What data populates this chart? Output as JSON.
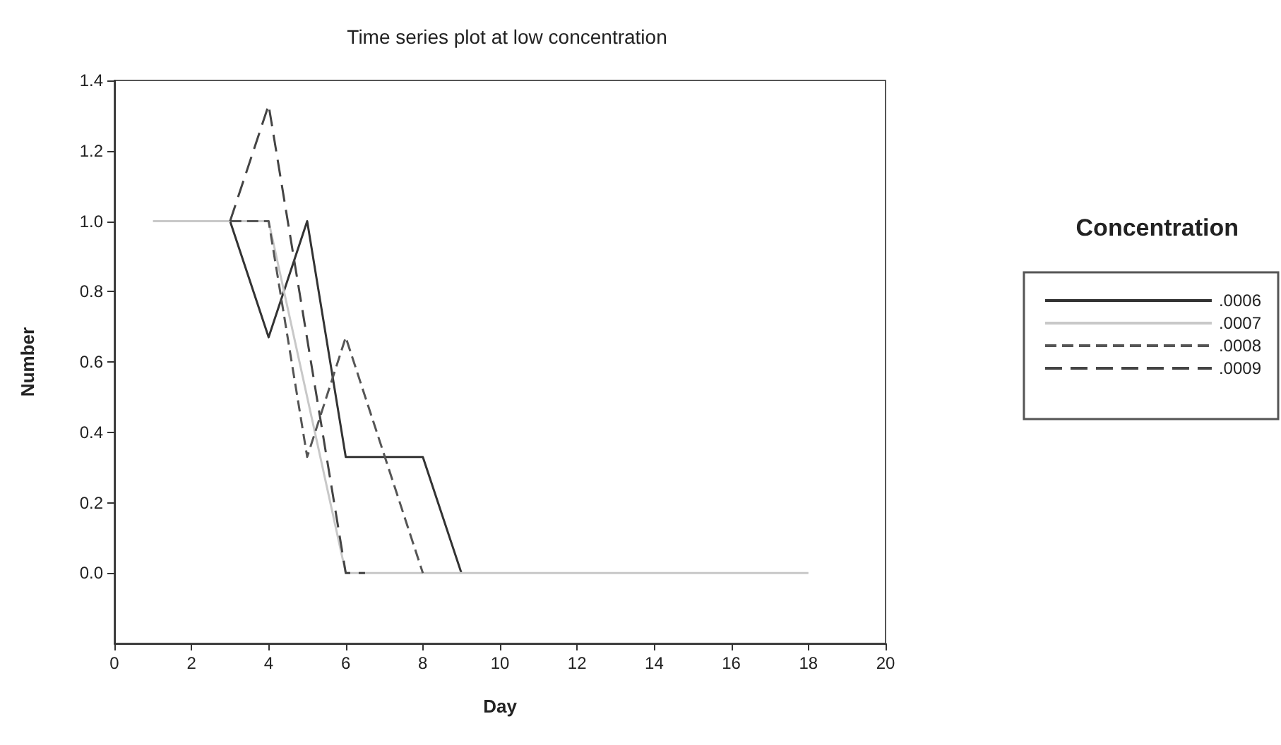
{
  "chart_data": {
    "type": "line",
    "title": "Time series plot at low concentration",
    "xlabel": "Day",
    "ylabel": "Number",
    "legend_title": "Concentration",
    "xlim": [
      0,
      20
    ],
    "xticks": [
      0,
      2,
      4,
      6,
      8,
      10,
      12,
      14,
      16,
      18,
      20
    ],
    "ylim": [
      -0.2,
      1.4
    ],
    "yticks": [
      {
        "value": 0,
        "label": "0.0"
      },
      0.2,
      0.4,
      0.6,
      0.8,
      {
        "value": 1,
        "label": "1.0"
      },
      1.2,
      1.4
    ],
    "grid": false,
    "legend": "right",
    "marker": "none",
    "series": [
      {
        "name": ".0006",
        "color": "#333333",
        "line_style": "solid",
        "x": [
          3,
          4,
          5,
          6,
          8,
          9
        ],
        "values": [
          1.0,
          0.67,
          1.0,
          0.33,
          0.33,
          0.0
        ]
      },
      {
        "name": ".0007",
        "color": "#c8c8c8",
        "line_style": "solid",
        "x": [
          1,
          4,
          6,
          18
        ],
        "values": [
          1.0,
          1.0,
          0.0,
          0.0
        ]
      },
      {
        "name": ".0008",
        "color": "#555555",
        "line_style": "dashed",
        "x": [
          3,
          4,
          5,
          6,
          8
        ],
        "values": [
          1.0,
          1.0,
          0.33,
          0.67,
          0.0
        ]
      },
      {
        "name": ".0009",
        "color": "#444444",
        "line_style": "longdash",
        "x": [
          3,
          4,
          6,
          6.5
        ],
        "values": [
          1.0,
          1.33,
          0.0,
          0.0
        ]
      }
    ]
  }
}
